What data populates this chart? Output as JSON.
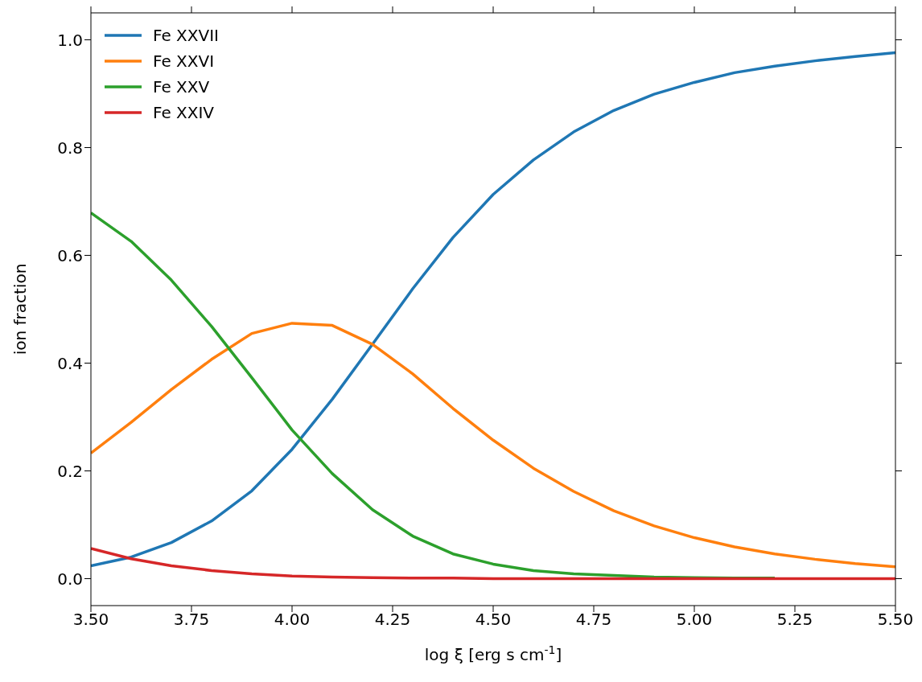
{
  "chart_data": {
    "type": "line",
    "xlabel": "log ξ [erg s cm$^{-1}$]",
    "ylabel": "ion fraction",
    "x": [
      3.5,
      3.6,
      3.7,
      3.8,
      3.9,
      4.0,
      4.1,
      4.2,
      4.3,
      4.4,
      4.5,
      4.6,
      4.7,
      4.8,
      4.9,
      5.0,
      5.1,
      5.2,
      5.3,
      5.4,
      5.5
    ],
    "series": [
      {
        "name": "Fe XXVII",
        "color": "#1f77b4",
        "values": [
          0.024,
          0.04,
          0.067,
          0.107,
          0.163,
          0.24,
          0.333,
          0.435,
          0.538,
          0.633,
          0.713,
          0.777,
          0.829,
          0.869,
          0.899,
          0.921,
          0.939,
          0.951,
          0.961,
          0.969,
          0.976
        ]
      },
      {
        "name": "Fe XXVI",
        "color": "#ff7f0e",
        "values": [
          0.233,
          0.29,
          0.351,
          0.407,
          0.455,
          0.474,
          0.47,
          0.435,
          0.38,
          0.316,
          0.257,
          0.205,
          0.162,
          0.126,
          0.098,
          0.076,
          0.059,
          0.046,
          0.036,
          0.028,
          0.022
        ]
      },
      {
        "name": "Fe XXV",
        "color": "#2ca02c",
        "values": [
          0.679,
          0.626,
          0.554,
          0.468,
          0.373,
          0.276,
          0.195,
          0.128,
          0.079,
          0.046,
          0.027,
          0.015,
          0.009,
          0.006,
          0.003,
          0.002,
          0.001,
          0.001,
          null,
          null,
          null
        ]
      },
      {
        "name": "Fe XXIV",
        "color": "#d62728",
        "values": [
          0.056,
          0.037,
          0.024,
          0.015,
          0.009,
          0.005,
          0.003,
          0.002,
          0.001,
          0.001,
          0,
          0,
          0,
          0,
          0,
          0,
          0,
          0,
          0,
          0,
          0
        ]
      }
    ],
    "xlim": [
      3.5,
      5.5
    ],
    "xticks": [
      {
        "value": 3.5,
        "label": "3.50"
      },
      {
        "value": 3.75,
        "label": "3.75"
      },
      {
        "value": 4.0,
        "label": "4.00"
      },
      {
        "value": 4.25,
        "label": "4.25"
      },
      {
        "value": 4.5,
        "label": "4.50"
      },
      {
        "value": 4.75,
        "label": "4.75"
      },
      {
        "value": 5.0,
        "label": "5.00"
      },
      {
        "value": 5.25,
        "label": "5.25"
      },
      {
        "value": 5.5,
        "label": "5.50"
      }
    ],
    "ylim": [
      -0.05,
      1.05
    ],
    "yticks": [
      {
        "value": 0,
        "label": "0.0"
      },
      {
        "value": 0.2,
        "label": "0.2"
      },
      {
        "value": 0.4,
        "label": "0.4"
      },
      {
        "value": 0.6,
        "label": "0.6"
      },
      {
        "value": 0.8,
        "label": "0.8"
      },
      {
        "value": 1.0,
        "label": "1.0"
      }
    ],
    "legend": "top left",
    "marker": "none",
    "line_style": "solid",
    "grid": false
  }
}
